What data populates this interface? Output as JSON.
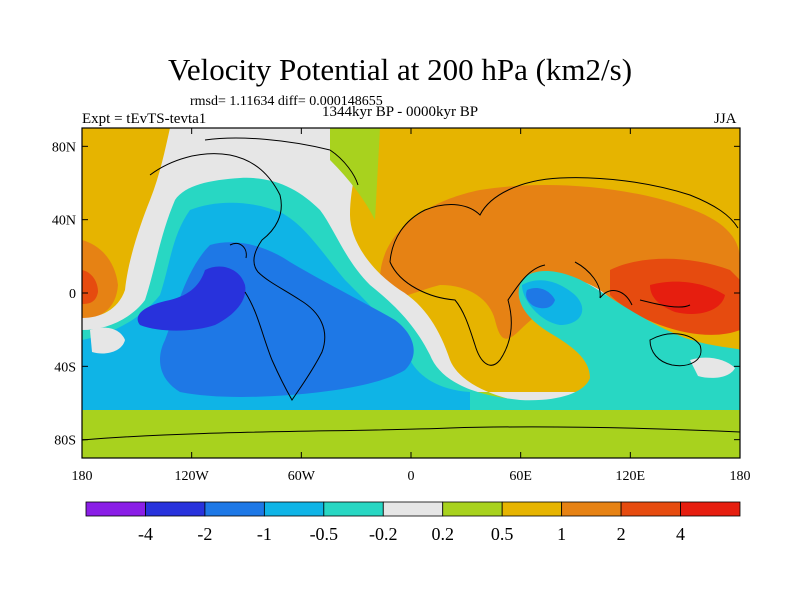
{
  "header": {
    "title": "Velocity Potential at 200 hPa (km2/s)",
    "stats": "rmsd= 1.11634 diff= 0.000148655",
    "experiment": "Expt = tEvTS-tevta1",
    "period": "1344kyr BP - 0000kyr BP",
    "season": "JJA"
  },
  "axes": {
    "lat_labels": [
      "80N",
      "40N",
      "0",
      "40S",
      "80S"
    ],
    "lat_values": [
      80,
      40,
      0,
      -40,
      -80
    ],
    "lon_labels": [
      "180",
      "120W",
      "60W",
      "0",
      "60E",
      "120E",
      "180"
    ],
    "lon_values": [
      -180,
      -120,
      -60,
      0,
      60,
      120,
      180
    ]
  },
  "colorbar": {
    "colors": [
      "#8a1ee6",
      "#2832dc",
      "#1e78e6",
      "#0fb4e6",
      "#28d7c3",
      "#e6e6e6",
      "#a8d21e",
      "#e6b400",
      "#e68214",
      "#e64b0f",
      "#e61e0f"
    ],
    "labels": [
      "-4",
      "-2",
      "-1",
      "-0.5",
      "-0.2",
      "0.2",
      "0.5",
      "1",
      "2",
      "4"
    ]
  },
  "chart_data": {
    "type": "filled-contour-map",
    "title": "Velocity Potential at 200 hPa (km2/s)",
    "variable": "velocity potential",
    "level_hPa": 200,
    "units": "km2/s",
    "season": "JJA",
    "contour_levels": [
      -4,
      -2,
      -1,
      -0.5,
      -0.2,
      0.2,
      0.5,
      1,
      2,
      4
    ],
    "xlim": [
      -180,
      180
    ],
    "ylim": [
      -90,
      90
    ],
    "features": [
      {
        "region": "tropical eastern Pacific",
        "lon": -110,
        "lat": -5,
        "value_range": "-4 to -2"
      },
      {
        "region": "South America / South Atlantic",
        "lon": -45,
        "lat": -30,
        "value_range": "-2 to -1"
      },
      {
        "region": "western Indian Ocean",
        "lon": 70,
        "lat": 0,
        "value_range": "-2 to -1"
      },
      {
        "region": "western Pacific warm pool",
        "lon": 150,
        "lat": 0,
        "value_range": "2 to 4"
      },
      {
        "region": "Africa / Asia",
        "lon": 60,
        "lat": 30,
        "value_range": "1 to 2"
      },
      {
        "region": "Arctic",
        "lon": 0,
        "lat": 80,
        "value_range": "0.5 to 1"
      }
    ]
  }
}
